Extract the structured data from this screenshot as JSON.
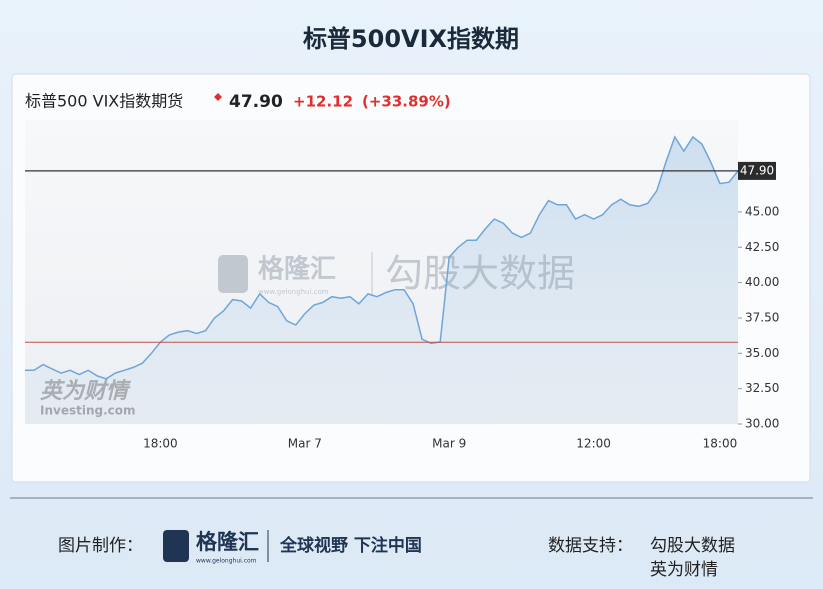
{
  "title": "标普500VIX指数期",
  "chart_data": {
    "type": "line",
    "header": {
      "name": "标普500 VIX指数期货",
      "change": "+12.12",
      "change_pct": "(+33.89%)"
    },
    "categories": [
      null,
      null,
      null,
      null,
      null,
      null,
      null,
      null,
      null,
      null,
      null,
      null,
      null,
      null,
      null,
      "18:00",
      null,
      null,
      null,
      null,
      null,
      null,
      null,
      null,
      null,
      null,
      null,
      null,
      null,
      null,
      null,
      "Mar 7",
      null,
      null,
      null,
      null,
      null,
      null,
      null,
      null,
      null,
      null,
      null,
      null,
      null,
      null,
      null,
      "Mar 9",
      null,
      null,
      null,
      null,
      null,
      null,
      null,
      null,
      null,
      null,
      null,
      null,
      null,
      null,
      null,
      "12:00",
      null,
      null,
      null,
      null,
      null,
      null,
      null,
      null,
      null,
      null,
      null,
      null,
      null,
      "18:00",
      null,
      null
    ],
    "series": [
      {
        "color": "#6fa6d9",
        "values": [
          33.8,
          33.8,
          34.2,
          33.9,
          33.6,
          33.8,
          33.5,
          33.8,
          33.4,
          33.2,
          33.6,
          33.8,
          34.0,
          34.3,
          35.0,
          35.8,
          36.3,
          36.5,
          36.6,
          36.4,
          36.6,
          37.5,
          38.0,
          38.8,
          38.7,
          38.2,
          39.2,
          38.6,
          38.3,
          37.3,
          37.0,
          37.8,
          38.4,
          38.6,
          39.0,
          38.9,
          39.0,
          38.5,
          39.2,
          39.0,
          39.3,
          39.5,
          39.5,
          38.5,
          36.0,
          35.7,
          35.8,
          41.8,
          42.5,
          43.0,
          43.0,
          43.8,
          44.5,
          44.2,
          43.5,
          43.2,
          43.5,
          44.8,
          45.8,
          45.5,
          45.5,
          44.5,
          44.8,
          44.5,
          44.8,
          45.5,
          45.9,
          45.5,
          45.4,
          45.6,
          46.5,
          48.5,
          50.3,
          49.3,
          50.3,
          49.8,
          48.5,
          47.0,
          47.1,
          47.9
        ]
      }
    ],
    "price_line": {
      "value": 47.9,
      "label": "47.90"
    },
    "reference_line": 35.78,
    "ylim": [
      30,
      51.5
    ],
    "yticks": [
      {
        "value": 30,
        "label": "30.00"
      },
      {
        "value": 32.5,
        "label": "32.50"
      },
      {
        "value": 35,
        "label": "35.00"
      },
      {
        "value": 37.5,
        "label": "37.50"
      },
      {
        "value": 40,
        "label": "40.00"
      },
      {
        "value": 42.5,
        "label": "42.50"
      },
      {
        "value": 45,
        "label": "45.00"
      }
    ],
    "grid": false
  },
  "watermarks": {
    "glh": "格隆汇",
    "glh_url": "www.gelonghui.com",
    "ggu": "勾股大数据",
    "inv_cn": "英为财情",
    "inv_en": "Investing.com"
  },
  "footer": {
    "made_by": "图片制作：",
    "logo": "格隆汇",
    "logo_url": "www.gelonghui.com",
    "slogan": "全球视野 下注中国",
    "data_by": "数据支持：",
    "source1": "勾股大数据",
    "source2": "英为财情"
  }
}
